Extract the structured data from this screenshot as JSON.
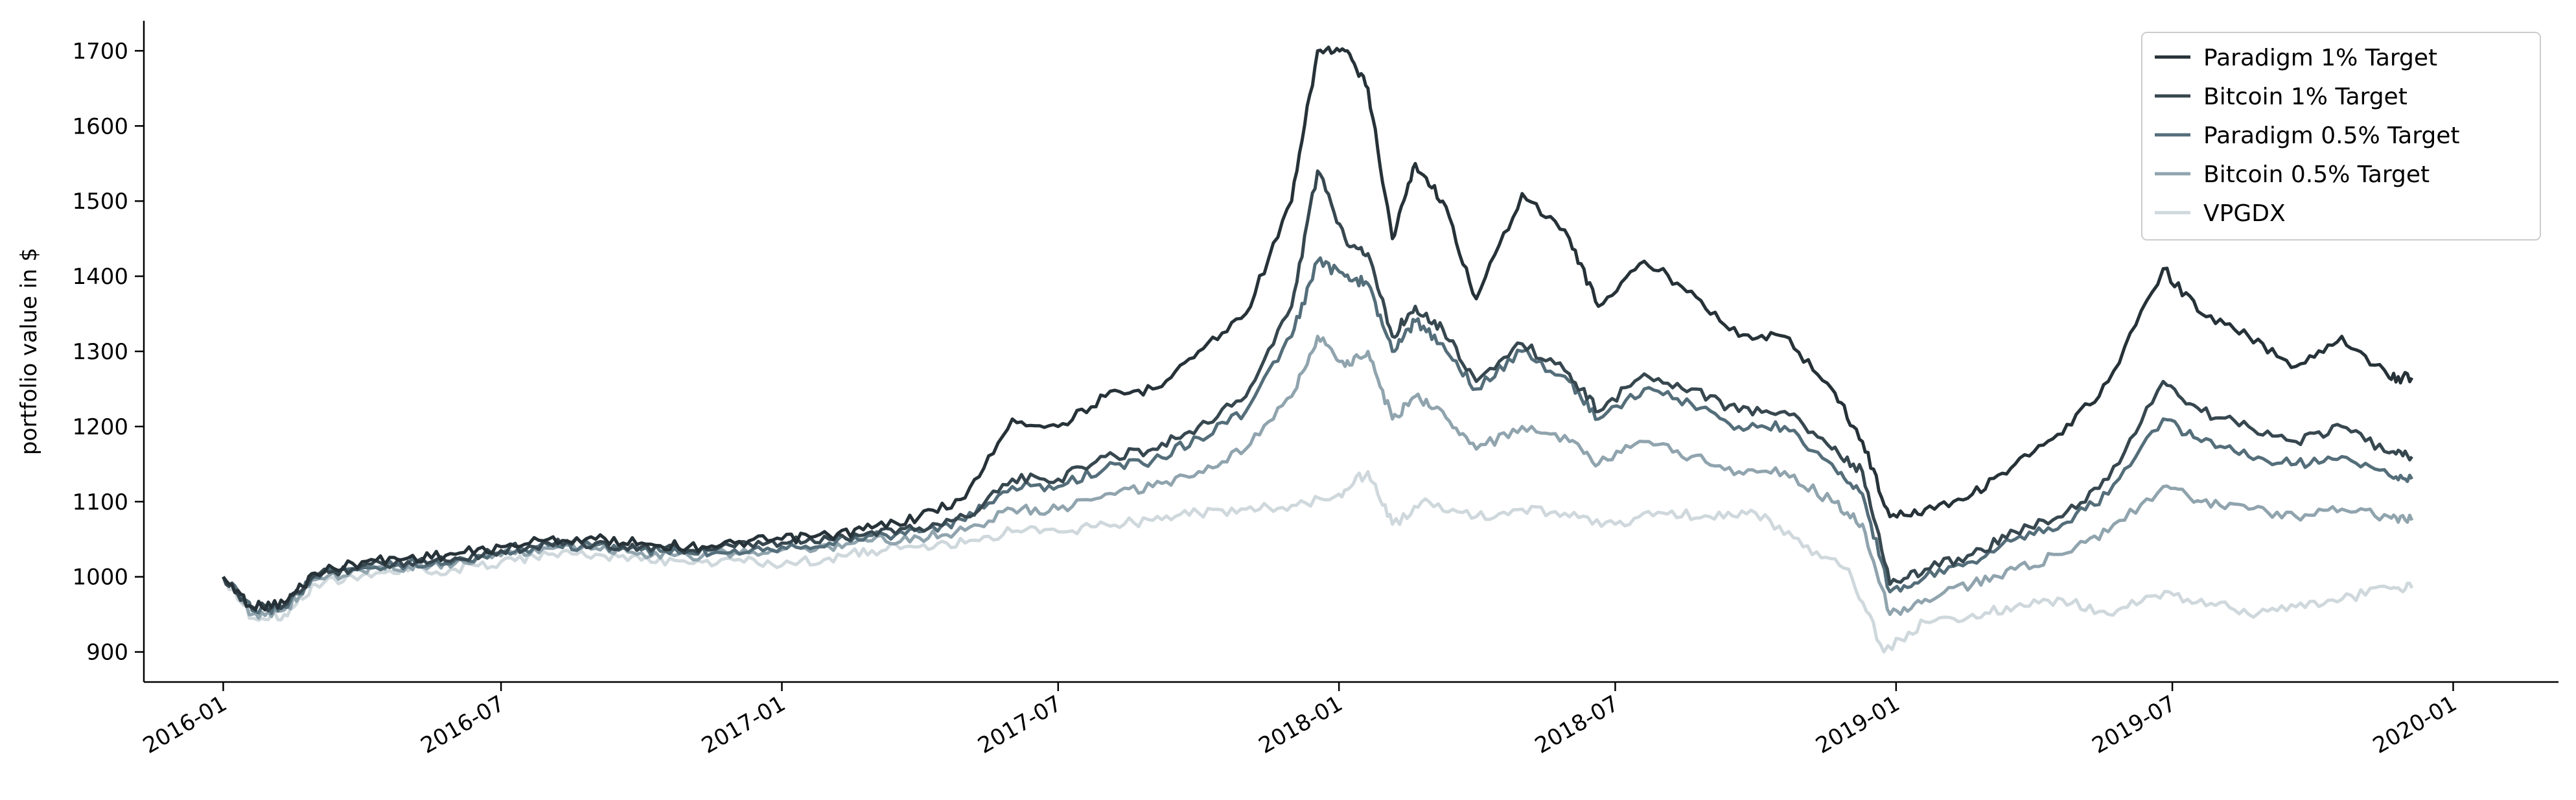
{
  "chart_data": {
    "type": "line",
    "title": "",
    "xlabel": "",
    "ylabel": "portfolio value in $",
    "xlim": [
      "2015-11-10",
      "2020-03-10"
    ],
    "ylim": [
      860,
      1740
    ],
    "x_ticks": [
      "2016-01",
      "2016-07",
      "2017-01",
      "2017-07",
      "2018-01",
      "2018-07",
      "2019-01",
      "2019-07",
      "2020-01"
    ],
    "y_ticks": [
      900,
      1000,
      1100,
      1200,
      1300,
      1400,
      1500,
      1600,
      1700
    ],
    "grid": false,
    "legend_position": "top-right",
    "series": [
      {
        "name": "Paradigm 1% Target",
        "color": "#263238",
        "points": [
          [
            "2016-01-01",
            1000
          ],
          [
            "2016-01-20",
            960
          ],
          [
            "2016-02-10",
            965
          ],
          [
            "2016-03-01",
            1005
          ],
          [
            "2016-04-01",
            1020
          ],
          [
            "2016-05-01",
            1025
          ],
          [
            "2016-06-01",
            1030
          ],
          [
            "2016-07-01",
            1040
          ],
          [
            "2016-08-01",
            1050
          ],
          [
            "2016-09-01",
            1050
          ],
          [
            "2016-10-01",
            1045
          ],
          [
            "2016-11-01",
            1040
          ],
          [
            "2016-12-01",
            1045
          ],
          [
            "2017-01-01",
            1050
          ],
          [
            "2017-02-01",
            1055
          ],
          [
            "2017-03-01",
            1065
          ],
          [
            "2017-04-01",
            1080
          ],
          [
            "2017-05-01",
            1105
          ],
          [
            "2017-06-01",
            1210
          ],
          [
            "2017-07-01",
            1200
          ],
          [
            "2017-08-01",
            1240
          ],
          [
            "2017-09-01",
            1250
          ],
          [
            "2017-10-01",
            1300
          ],
          [
            "2017-11-01",
            1350
          ],
          [
            "2017-12-01",
            1500
          ],
          [
            "2017-12-18",
            1700
          ],
          [
            "2018-01-05",
            1700
          ],
          [
            "2018-01-20",
            1650
          ],
          [
            "2018-02-05",
            1450
          ],
          [
            "2018-02-20",
            1550
          ],
          [
            "2018-03-10",
            1500
          ],
          [
            "2018-04-01",
            1370
          ],
          [
            "2018-05-01",
            1510
          ],
          [
            "2018-06-01",
            1450
          ],
          [
            "2018-06-20",
            1360
          ],
          [
            "2018-07-20",
            1420
          ],
          [
            "2018-08-20",
            1380
          ],
          [
            "2018-09-20",
            1320
          ],
          [
            "2018-10-20",
            1320
          ],
          [
            "2018-11-20",
            1250
          ],
          [
            "2018-12-10",
            1180
          ],
          [
            "2018-12-28",
            1080
          ],
          [
            "2019-01-20",
            1090
          ],
          [
            "2019-02-20",
            1110
          ],
          [
            "2019-03-20",
            1150
          ],
          [
            "2019-04-20",
            1190
          ],
          [
            "2019-05-20",
            1260
          ],
          [
            "2019-06-25",
            1410
          ],
          [
            "2019-07-20",
            1350
          ],
          [
            "2019-08-20",
            1320
          ],
          [
            "2019-09-20",
            1280
          ],
          [
            "2019-10-20",
            1320
          ],
          [
            "2019-11-20",
            1265
          ],
          [
            "2019-12-05",
            1265
          ]
        ]
      },
      {
        "name": "Bitcoin 1% Target",
        "color": "#37474f",
        "points": [
          [
            "2016-01-01",
            1000
          ],
          [
            "2016-01-20",
            958
          ],
          [
            "2016-02-10",
            962
          ],
          [
            "2016-03-01",
            1002
          ],
          [
            "2016-04-01",
            1015
          ],
          [
            "2016-05-01",
            1020
          ],
          [
            "2016-06-01",
            1025
          ],
          [
            "2016-07-01",
            1035
          ],
          [
            "2016-08-01",
            1045
          ],
          [
            "2016-09-01",
            1045
          ],
          [
            "2016-10-01",
            1040
          ],
          [
            "2016-11-01",
            1035
          ],
          [
            "2016-12-01",
            1040
          ],
          [
            "2017-01-01",
            1045
          ],
          [
            "2017-02-01",
            1050
          ],
          [
            "2017-03-01",
            1060
          ],
          [
            "2017-04-01",
            1065
          ],
          [
            "2017-05-01",
            1080
          ],
          [
            "2017-06-01",
            1130
          ],
          [
            "2017-07-01",
            1130
          ],
          [
            "2017-08-01",
            1160
          ],
          [
            "2017-09-01",
            1170
          ],
          [
            "2017-10-01",
            1200
          ],
          [
            "2017-11-01",
            1240
          ],
          [
            "2017-12-01",
            1360
          ],
          [
            "2017-12-18",
            1540
          ],
          [
            "2018-01-05",
            1450
          ],
          [
            "2018-01-20",
            1430
          ],
          [
            "2018-02-05",
            1320
          ],
          [
            "2018-02-20",
            1360
          ],
          [
            "2018-03-10",
            1330
          ],
          [
            "2018-04-01",
            1260
          ],
          [
            "2018-05-01",
            1310
          ],
          [
            "2018-06-01",
            1270
          ],
          [
            "2018-06-20",
            1220
          ],
          [
            "2018-07-20",
            1270
          ],
          [
            "2018-08-20",
            1250
          ],
          [
            "2018-09-20",
            1220
          ],
          [
            "2018-10-20",
            1220
          ],
          [
            "2018-11-20",
            1170
          ],
          [
            "2018-12-10",
            1140
          ],
          [
            "2018-12-28",
            990
          ],
          [
            "2019-01-20",
            1010
          ],
          [
            "2019-02-20",
            1030
          ],
          [
            "2019-03-20",
            1060
          ],
          [
            "2019-04-20",
            1080
          ],
          [
            "2019-05-20",
            1130
          ],
          [
            "2019-06-25",
            1260
          ],
          [
            "2019-07-20",
            1220
          ],
          [
            "2019-08-20",
            1200
          ],
          [
            "2019-09-20",
            1180
          ],
          [
            "2019-10-20",
            1200
          ],
          [
            "2019-11-20",
            1165
          ],
          [
            "2019-12-05",
            1160
          ]
        ]
      },
      {
        "name": "Paradigm 0.5% Target",
        "color": "#546e7a",
        "points": [
          [
            "2016-01-01",
            1000
          ],
          [
            "2016-01-20",
            955
          ],
          [
            "2016-02-10",
            960
          ],
          [
            "2016-03-01",
            1000
          ],
          [
            "2016-04-01",
            1012
          ],
          [
            "2016-05-01",
            1018
          ],
          [
            "2016-06-01",
            1022
          ],
          [
            "2016-07-01",
            1032
          ],
          [
            "2016-08-01",
            1042
          ],
          [
            "2016-09-01",
            1042
          ],
          [
            "2016-10-01",
            1036
          ],
          [
            "2016-11-01",
            1032
          ],
          [
            "2016-12-01",
            1036
          ],
          [
            "2017-01-01",
            1040
          ],
          [
            "2017-02-01",
            1045
          ],
          [
            "2017-03-01",
            1055
          ],
          [
            "2017-04-01",
            1060
          ],
          [
            "2017-05-01",
            1075
          ],
          [
            "2017-06-01",
            1120
          ],
          [
            "2017-07-01",
            1120
          ],
          [
            "2017-08-01",
            1145
          ],
          [
            "2017-09-01",
            1155
          ],
          [
            "2017-10-01",
            1185
          ],
          [
            "2017-11-01",
            1220
          ],
          [
            "2017-12-01",
            1320
          ],
          [
            "2017-12-18",
            1420
          ],
          [
            "2018-01-05",
            1400
          ],
          [
            "2018-01-20",
            1390
          ],
          [
            "2018-02-05",
            1300
          ],
          [
            "2018-02-20",
            1340
          ],
          [
            "2018-03-10",
            1310
          ],
          [
            "2018-04-01",
            1250
          ],
          [
            "2018-05-01",
            1300
          ],
          [
            "2018-06-01",
            1260
          ],
          [
            "2018-06-20",
            1210
          ],
          [
            "2018-07-20",
            1250
          ],
          [
            "2018-08-20",
            1230
          ],
          [
            "2018-09-20",
            1200
          ],
          [
            "2018-10-20",
            1200
          ],
          [
            "2018-11-20",
            1150
          ],
          [
            "2018-12-10",
            1110
          ],
          [
            "2018-12-28",
            980
          ],
          [
            "2019-01-20",
            1000
          ],
          [
            "2019-02-20",
            1020
          ],
          [
            "2019-03-20",
            1050
          ],
          [
            "2019-04-20",
            1070
          ],
          [
            "2019-05-20",
            1110
          ],
          [
            "2019-06-25",
            1210
          ],
          [
            "2019-07-20",
            1180
          ],
          [
            "2019-08-20",
            1160
          ],
          [
            "2019-09-20",
            1150
          ],
          [
            "2019-10-20",
            1160
          ],
          [
            "2019-11-20",
            1135
          ],
          [
            "2019-12-05",
            1130
          ]
        ]
      },
      {
        "name": "Bitcoin 0.5% Target",
        "color": "#90a4ae",
        "points": [
          [
            "2016-01-01",
            1000
          ],
          [
            "2016-01-20",
            950
          ],
          [
            "2016-02-10",
            956
          ],
          [
            "2016-03-01",
            996
          ],
          [
            "2016-04-01",
            1008
          ],
          [
            "2016-05-01",
            1014
          ],
          [
            "2016-06-01",
            1018
          ],
          [
            "2016-07-01",
            1028
          ],
          [
            "2016-08-01",
            1038
          ],
          [
            "2016-09-01",
            1038
          ],
          [
            "2016-10-01",
            1032
          ],
          [
            "2016-11-01",
            1028
          ],
          [
            "2016-12-01",
            1032
          ],
          [
            "2017-01-01",
            1036
          ],
          [
            "2017-02-01",
            1040
          ],
          [
            "2017-03-01",
            1048
          ],
          [
            "2017-04-01",
            1052
          ],
          [
            "2017-05-01",
            1062
          ],
          [
            "2017-06-01",
            1090
          ],
          [
            "2017-07-01",
            1090
          ],
          [
            "2017-08-01",
            1110
          ],
          [
            "2017-09-01",
            1120
          ],
          [
            "2017-10-01",
            1140
          ],
          [
            "2017-11-01",
            1170
          ],
          [
            "2017-12-01",
            1240
          ],
          [
            "2017-12-18",
            1320
          ],
          [
            "2018-01-05",
            1280
          ],
          [
            "2018-01-20",
            1300
          ],
          [
            "2018-02-05",
            1210
          ],
          [
            "2018-02-20",
            1240
          ],
          [
            "2018-03-10",
            1220
          ],
          [
            "2018-04-01",
            1170
          ],
          [
            "2018-05-01",
            1200
          ],
          [
            "2018-06-01",
            1180
          ],
          [
            "2018-06-20",
            1150
          ],
          [
            "2018-07-20",
            1180
          ],
          [
            "2018-08-20",
            1160
          ],
          [
            "2018-09-20",
            1140
          ],
          [
            "2018-10-20",
            1140
          ],
          [
            "2018-11-20",
            1100
          ],
          [
            "2018-12-10",
            1070
          ],
          [
            "2018-12-28",
            950
          ],
          [
            "2019-01-20",
            970
          ],
          [
            "2019-02-20",
            990
          ],
          [
            "2019-03-20",
            1010
          ],
          [
            "2019-04-20",
            1030
          ],
          [
            "2019-05-20",
            1060
          ],
          [
            "2019-06-25",
            1120
          ],
          [
            "2019-07-20",
            1100
          ],
          [
            "2019-08-20",
            1090
          ],
          [
            "2019-09-20",
            1080
          ],
          [
            "2019-10-20",
            1090
          ],
          [
            "2019-11-20",
            1080
          ],
          [
            "2019-12-05",
            1075
          ]
        ]
      },
      {
        "name": "VPGDX",
        "color": "#cfd8dc",
        "points": [
          [
            "2016-01-01",
            1000
          ],
          [
            "2016-01-20",
            945
          ],
          [
            "2016-02-10",
            950
          ],
          [
            "2016-03-01",
            990
          ],
          [
            "2016-04-01",
            1002
          ],
          [
            "2016-05-01",
            1008
          ],
          [
            "2016-06-01",
            1010
          ],
          [
            "2016-07-01",
            1020
          ],
          [
            "2016-08-01",
            1030
          ],
          [
            "2016-09-01",
            1030
          ],
          [
            "2016-10-01",
            1022
          ],
          [
            "2016-11-01",
            1018
          ],
          [
            "2016-12-01",
            1022
          ],
          [
            "2017-01-01",
            1015
          ],
          [
            "2017-02-01",
            1025
          ],
          [
            "2017-03-01",
            1035
          ],
          [
            "2017-04-01",
            1040
          ],
          [
            "2017-05-01",
            1045
          ],
          [
            "2017-06-01",
            1060
          ],
          [
            "2017-07-01",
            1060
          ],
          [
            "2017-08-01",
            1070
          ],
          [
            "2017-09-01",
            1075
          ],
          [
            "2017-10-01",
            1085
          ],
          [
            "2017-11-01",
            1090
          ],
          [
            "2017-12-01",
            1095
          ],
          [
            "2018-01-01",
            1110
          ],
          [
            "2018-01-20",
            1140
          ],
          [
            "2018-02-05",
            1070
          ],
          [
            "2018-03-01",
            1100
          ],
          [
            "2018-04-01",
            1080
          ],
          [
            "2018-05-01",
            1090
          ],
          [
            "2018-06-01",
            1080
          ],
          [
            "2018-07-01",
            1070
          ],
          [
            "2018-08-01",
            1085
          ],
          [
            "2018-09-01",
            1080
          ],
          [
            "2018-10-01",
            1085
          ],
          [
            "2018-11-01",
            1040
          ],
          [
            "2018-12-01",
            1010
          ],
          [
            "2018-12-24",
            900
          ],
          [
            "2019-01-20",
            940
          ],
          [
            "2019-02-20",
            950
          ],
          [
            "2019-03-20",
            960
          ],
          [
            "2019-04-20",
            970
          ],
          [
            "2019-05-20",
            950
          ],
          [
            "2019-06-20",
            975
          ],
          [
            "2019-07-20",
            970
          ],
          [
            "2019-08-20",
            950
          ],
          [
            "2019-09-20",
            960
          ],
          [
            "2019-10-20",
            970
          ],
          [
            "2019-11-20",
            985
          ],
          [
            "2019-12-05",
            985
          ]
        ]
      }
    ]
  }
}
